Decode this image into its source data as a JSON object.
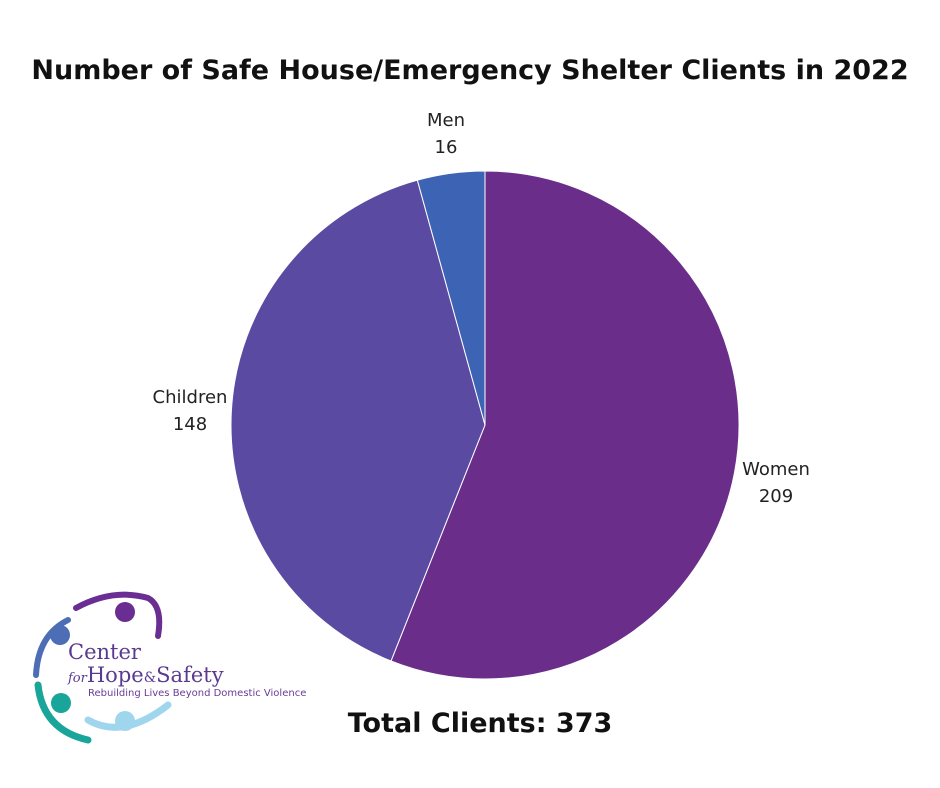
{
  "chart_data": {
    "type": "pie",
    "title": "Number of Safe House/Emergency Shelter Clients in 2022",
    "slices": [
      {
        "label": "Women",
        "value": 209,
        "color": "#6b2d8a"
      },
      {
        "label": "Children",
        "value": 148,
        "color": "#5b4aa1"
      },
      {
        "label": "Men",
        "value": 16,
        "color": "#3d63b4"
      }
    ],
    "start": "12 o'clock",
    "direction": "clockwise",
    "total_label": "Total Clients: 373"
  },
  "logo": {
    "line1": "Center",
    "for": "for",
    "line2": "Hope",
    "amp": "&",
    "line3": "Safety",
    "tagline": "Rebuilding Lives Beyond Domestic Violence",
    "colors": {
      "purple": "#6a2d91",
      "blue": "#4d6db5",
      "teal": "#1aa59a",
      "light-blue": "#9fd6ee"
    }
  }
}
